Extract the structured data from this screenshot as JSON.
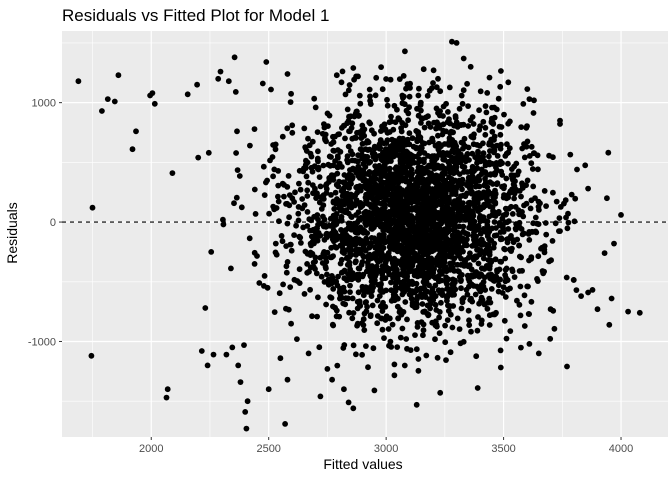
{
  "chart_data": {
    "type": "scatter",
    "title": "Residuals vs Fitted Plot for Model 1",
    "xlabel": "Fitted values",
    "ylabel": "Residuals",
    "xlim": [
      1620,
      4200
    ],
    "ylim": [
      -1800,
      1600
    ],
    "x_ticks": [
      2000,
      2500,
      3000,
      3500,
      4000
    ],
    "y_ticks": [
      -1000,
      0,
      1000
    ],
    "x_tick_labels": [
      "2000",
      "2500",
      "3000",
      "3500",
      "4000"
    ],
    "y_tick_labels": [
      "-1000",
      "0",
      "1000"
    ],
    "grid": true,
    "panel_background": "#ebebeb",
    "gridline_color": "#ffffff",
    "point_color": "#000000",
    "reference_line": {
      "y": 0,
      "style": "dashed",
      "color": "#000000"
    },
    "points": [
      {
        "x": 1690,
        "y": 1180
      },
      {
        "x": 1745,
        "y": -1120
      },
      {
        "x": 1750,
        "y": 120
      },
      {
        "x": 1790,
        "y": 930
      },
      {
        "x": 1815,
        "y": 1030
      },
      {
        "x": 1845,
        "y": 1010
      },
      {
        "x": 1860,
        "y": 1230
      },
      {
        "x": 1920,
        "y": 610
      },
      {
        "x": 1935,
        "y": 760
      },
      {
        "x": 1995,
        "y": 1060
      },
      {
        "x": 2005,
        "y": 1080
      },
      {
        "x": 2015,
        "y": 990
      },
      {
        "x": 2065,
        "y": -1470
      },
      {
        "x": 2070,
        "y": -1400
      },
      {
        "x": 2090,
        "y": 410
      },
      {
        "x": 2155,
        "y": 1070
      },
      {
        "x": 2195,
        "y": 1150
      },
      {
        "x": 2200,
        "y": 540
      },
      {
        "x": 2215,
        "y": -1080
      },
      {
        "x": 2230,
        "y": -720
      },
      {
        "x": 2240,
        "y": -1200
      },
      {
        "x": 2245,
        "y": 580
      },
      {
        "x": 2255,
        "y": -250
      },
      {
        "x": 2265,
        "y": -1110
      },
      {
        "x": 2285,
        "y": 1200
      },
      {
        "x": 2295,
        "y": 1260
      },
      {
        "x": 2305,
        "y": 20
      },
      {
        "x": 2320,
        "y": -1110
      },
      {
        "x": 2330,
        "y": 1180
      },
      {
        "x": 2345,
        "y": -1050
      },
      {
        "x": 2355,
        "y": 1380
      },
      {
        "x": 2360,
        "y": 1090
      },
      {
        "x": 2365,
        "y": 760
      },
      {
        "x": 2370,
        "y": -1200
      },
      {
        "x": 2380,
        "y": -1340
      },
      {
        "x": 2395,
        "y": -1030
      },
      {
        "x": 2400,
        "y": -1590
      },
      {
        "x": 2405,
        "y": -1730
      },
      {
        "x": 2410,
        "y": -1500
      },
      {
        "x": 2420,
        "y": 640
      },
      {
        "x": 2440,
        "y": -350
      },
      {
        "x": 2460,
        "y": -510
      },
      {
        "x": 2475,
        "y": 1160
      },
      {
        "x": 2490,
        "y": 1340
      },
      {
        "x": 2500,
        "y": -1400
      },
      {
        "x": 2510,
        "y": 1110
      },
      {
        "x": 2530,
        "y": 650
      },
      {
        "x": 2550,
        "y": -1140
      },
      {
        "x": 2570,
        "y": -1690
      },
      {
        "x": 2580,
        "y": 1240
      },
      {
        "x": 2580,
        "y": -1320
      },
      {
        "x": 2600,
        "y": 810
      },
      {
        "x": 2620,
        "y": -980
      },
      {
        "x": 2650,
        "y": 450
      },
      {
        "x": 2670,
        "y": -1100
      },
      {
        "x": 2700,
        "y": 960
      },
      {
        "x": 2720,
        "y": -1460
      },
      {
        "x": 2750,
        "y": -1230
      },
      {
        "x": 2770,
        "y": -1320
      },
      {
        "x": 2790,
        "y": 1230
      },
      {
        "x": 2810,
        "y": 1170
      },
      {
        "x": 2820,
        "y": -1400
      },
      {
        "x": 2840,
        "y": -1510
      },
      {
        "x": 2860,
        "y": -1560
      },
      {
        "x": 2860,
        "y": 1290
      },
      {
        "x": 2880,
        "y": 1220
      },
      {
        "x": 2950,
        "y": -1410
      },
      {
        "x": 3080,
        "y": 1430
      },
      {
        "x": 3130,
        "y": -1530
      },
      {
        "x": 3160,
        "y": 1280
      },
      {
        "x": 3230,
        "y": -1430
      },
      {
        "x": 3280,
        "y": 1510
      },
      {
        "x": 3300,
        "y": 1500
      },
      {
        "x": 3330,
        "y": 1370
      },
      {
        "x": 3360,
        "y": 1300
      },
      {
        "x": 3390,
        "y": -1390
      },
      {
        "x": 3440,
        "y": 1210
      },
      {
        "x": 3520,
        "y": 1170
      },
      {
        "x": 3610,
        "y": 1030
      },
      {
        "x": 3610,
        "y": -1020
      },
      {
        "x": 3650,
        "y": -1100
      },
      {
        "x": 3700,
        "y": -730
      },
      {
        "x": 3740,
        "y": 850
      },
      {
        "x": 3770,
        "y": -1210
      },
      {
        "x": 3790,
        "y": 230
      },
      {
        "x": 3810,
        "y": -570
      },
      {
        "x": 3830,
        "y": -620
      },
      {
        "x": 3860,
        "y": -590
      },
      {
        "x": 3860,
        "y": 280
      },
      {
        "x": 3900,
        "y": -730
      },
      {
        "x": 3930,
        "y": -260
      },
      {
        "x": 3940,
        "y": 200
      },
      {
        "x": 3950,
        "y": -860
      },
      {
        "x": 3960,
        "y": -640
      },
      {
        "x": 3970,
        "y": -180
      },
      {
        "x": 4000,
        "y": 60
      },
      {
        "x": 4030,
        "y": -750
      },
      {
        "x": 4080,
        "y": -760
      }
    ],
    "dense_cloud": {
      "center": [
        3120,
        40
      ],
      "spread": [
        250,
        450
      ],
      "count": 3200,
      "x_range": [
        2300,
        3950
      ],
      "y_range": [
        -1300,
        1300
      ]
    }
  }
}
